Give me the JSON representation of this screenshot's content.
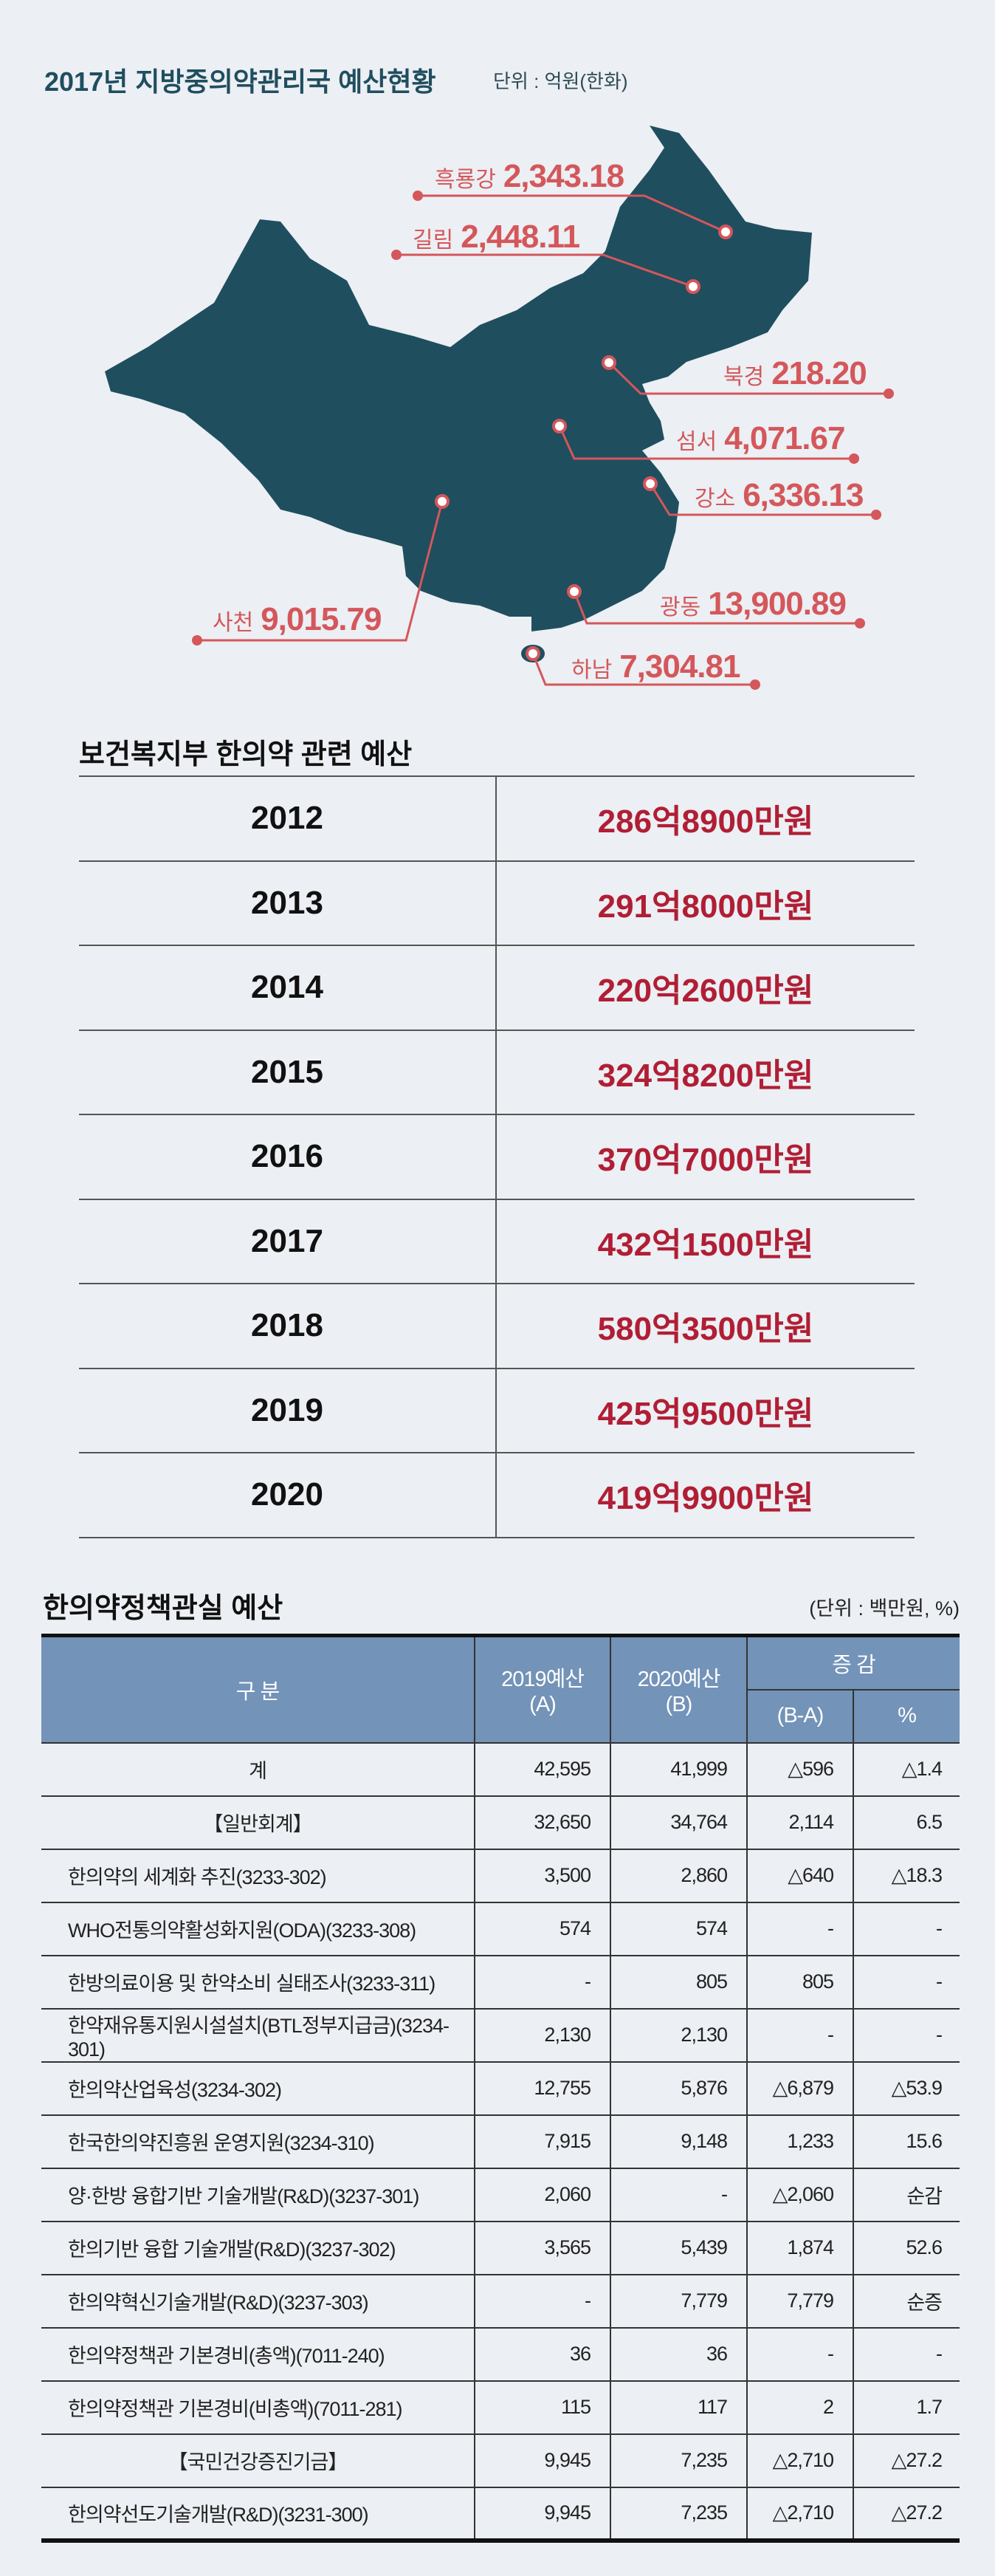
{
  "map_section": {
    "title": "2017년 지방중의약관리국 예산현황",
    "unit": "단위 : 억원(한화)",
    "map_color": "#1f4e5f",
    "label_color": "#d4575b",
    "regions": [
      {
        "name": "흑룡강",
        "value": "2,343.18"
      },
      {
        "name": "길림",
        "value": "2,448.11"
      },
      {
        "name": "북경",
        "value": "218.20"
      },
      {
        "name": "섬서",
        "value": "4,071.67"
      },
      {
        "name": "강소",
        "value": "6,336.13"
      },
      {
        "name": "사천",
        "value": "9,015.79"
      },
      {
        "name": "광동",
        "value": "13,900.89"
      },
      {
        "name": "하남",
        "value": "7,304.81"
      }
    ]
  },
  "mohw_budget": {
    "title": "보건복지부 한의약 관련 예산",
    "rows": [
      {
        "year": "2012",
        "amount": "286억8900만원"
      },
      {
        "year": "2013",
        "amount": "291억8000만원"
      },
      {
        "year": "2014",
        "amount": "220억2600만원"
      },
      {
        "year": "2015",
        "amount": "324억8200만원"
      },
      {
        "year": "2016",
        "amount": "370억7000만원"
      },
      {
        "year": "2017",
        "amount": "432억1500만원"
      },
      {
        "year": "2018",
        "amount": "580억3500만원"
      },
      {
        "year": "2019",
        "amount": "425억9500만원"
      },
      {
        "year": "2020",
        "amount": "419억9900만원"
      }
    ]
  },
  "policy_budget": {
    "title": "한의약정책관실 예산",
    "unit": "(단위 : 백만원, %)",
    "header_color": "#7393b8",
    "headers": {
      "category": "구  분",
      "y2019": "2019예산",
      "y2019_sub": "(A)",
      "y2020": "2020예산",
      "y2020_sub": "(B)",
      "change": "증 감",
      "diff": "(B-A)",
      "pct": "%"
    },
    "rows": [
      {
        "name": "계",
        "a": "42,595",
        "b": "41,999",
        "diff": "△596",
        "pct": "△1.4",
        "center": true
      },
      {
        "name": "【일반회계】",
        "a": "32,650",
        "b": "34,764",
        "diff": "2,114",
        "pct": "6.5",
        "center": true
      },
      {
        "name": "한의약의 세계화 추진(3233-302)",
        "a": "3,500",
        "b": "2,860",
        "diff": "△640",
        "pct": "△18.3"
      },
      {
        "name": "WHO전통의약활성화지원(ODA)(3233-308)",
        "a": "574",
        "b": "574",
        "diff": "-",
        "pct": "-"
      },
      {
        "name": "한방의료이용 및 한약소비 실태조사(3233-311)",
        "a": "-",
        "b": "805",
        "diff": "805",
        "pct": "-"
      },
      {
        "name": "한약재유통지원시설설치(BTL정부지급금)(3234-301)",
        "a": "2,130",
        "b": "2,130",
        "diff": "-",
        "pct": "-"
      },
      {
        "name": "한의약산업육성(3234-302)",
        "a": "12,755",
        "b": "5,876",
        "diff": "△6,879",
        "pct": "△53.9"
      },
      {
        "name": "한국한의약진흥원 운영지원(3234-310)",
        "a": "7,915",
        "b": "9,148",
        "diff": "1,233",
        "pct": "15.6"
      },
      {
        "name": "양·한방 융합기반 기술개발(R&D)(3237-301)",
        "a": "2,060",
        "b": "-",
        "diff": "△2,060",
        "pct": "순감"
      },
      {
        "name": "한의기반 융합 기술개발(R&D)(3237-302)",
        "a": "3,565",
        "b": "5,439",
        "diff": "1,874",
        "pct": "52.6"
      },
      {
        "name": "한의약혁신기술개발(R&D)(3237-303)",
        "a": "-",
        "b": "7,779",
        "diff": "7,779",
        "pct": "순증"
      },
      {
        "name": "한의약정책관 기본경비(총액)(7011-240)",
        "a": "36",
        "b": "36",
        "diff": "-",
        "pct": "-"
      },
      {
        "name": "한의약정책관 기본경비(비총액)(7011-281)",
        "a": "115",
        "b": "117",
        "diff": "2",
        "pct": "1.7"
      },
      {
        "name": "【국민건강증진기금】",
        "a": "9,945",
        "b": "7,235",
        "diff": "△2,710",
        "pct": "△27.2",
        "center": true
      },
      {
        "name": "한의약선도기술개발(R&D)(3231-300)",
        "a": "9,945",
        "b": "7,235",
        "diff": "△2,710",
        "pct": "△27.2"
      }
    ]
  }
}
